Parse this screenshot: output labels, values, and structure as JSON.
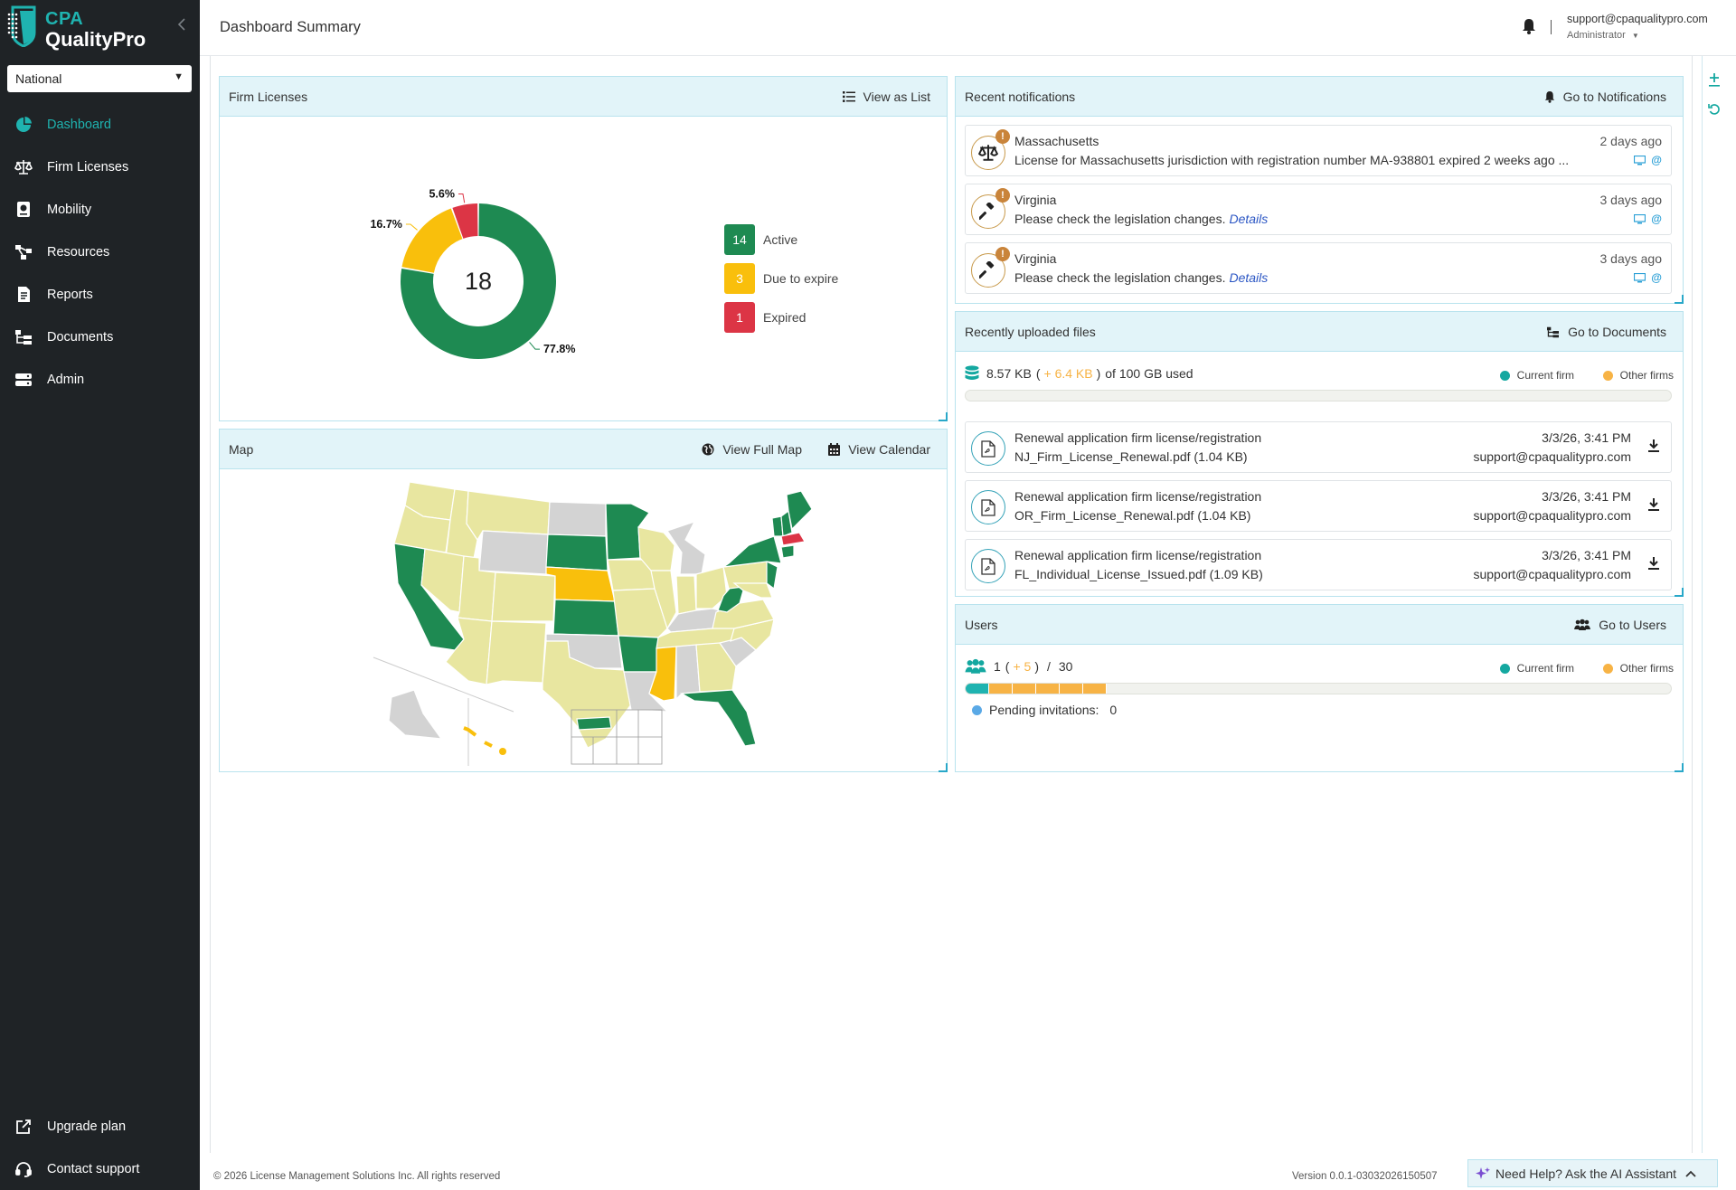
{
  "app": {
    "logo_line1": "CPA",
    "logo_line2": "QualityPro"
  },
  "sidebar": {
    "jurisdiction_select": "National",
    "items": [
      {
        "label": "Dashboard",
        "icon": "pie-chart-icon",
        "active": true
      },
      {
        "label": "Firm Licenses",
        "icon": "scales-icon"
      },
      {
        "label": "Mobility",
        "icon": "passport-icon"
      },
      {
        "label": "Resources",
        "icon": "nodes-icon"
      },
      {
        "label": "Reports",
        "icon": "report-icon"
      },
      {
        "label": "Documents",
        "icon": "folder-tree-icon"
      },
      {
        "label": "Admin",
        "icon": "server-icon"
      }
    ],
    "bottom_items": [
      {
        "label": "Upgrade plan",
        "icon": "external-link-icon"
      },
      {
        "label": "Contact support",
        "icon": "headset-icon"
      }
    ]
  },
  "header": {
    "title": "Dashboard Summary",
    "user_email": "support@cpaqualitypro.com",
    "user_role": "Administrator"
  },
  "firm_licenses": {
    "title": "Firm Licenses",
    "action": "View as List",
    "total": "18",
    "legend": [
      {
        "count": "14",
        "label": "Active",
        "color": "#1e8a52"
      },
      {
        "count": "3",
        "label": "Due to expire",
        "color": "#f9bf0c"
      },
      {
        "count": "1",
        "label": "Expired",
        "color": "#dc3545"
      }
    ]
  },
  "chart_data": {
    "type": "pie",
    "categories": [
      "Active",
      "Due to expire",
      "Expired"
    ],
    "values": [
      14,
      3,
      1
    ],
    "percent_labels": [
      "77.8%",
      "16.7%",
      "5.6%"
    ],
    "colors": [
      "#1e8a52",
      "#f9bf0c",
      "#dc3545"
    ],
    "center_label": "18"
  },
  "map": {
    "title": "Map",
    "action_full_map": "View Full Map",
    "action_calendar": "View Calendar"
  },
  "notifications": {
    "title": "Recent notifications",
    "action": "Go to Notifications",
    "items": [
      {
        "icon": "scales-icon",
        "title": "Massachusetts",
        "message": "License for Massachusetts jurisdiction with registration number MA-938801 expired 2 weeks ago ...",
        "link": "",
        "time": "2 days ago"
      },
      {
        "icon": "gavel-icon",
        "title": "Virginia",
        "message": "Please check the legislation changes.",
        "link": "Details",
        "time": "3 days ago"
      },
      {
        "icon": "gavel-icon",
        "title": "Virginia",
        "message": "Please check the legislation changes.",
        "link": "Details",
        "time": "3 days ago"
      }
    ]
  },
  "files": {
    "title": "Recently uploaded files",
    "action": "Go to Documents",
    "usage_current": "8.57 KB",
    "usage_other": "+ 6.4 KB",
    "usage_total": "of 100 GB used",
    "legend_current": "Current firm",
    "legend_other": "Other firms",
    "items": [
      {
        "type": "Renewal application firm license/registration",
        "name": "NJ_Firm_License_Renewal.pdf (1.04 KB)",
        "date": "3/3/26, 3:41 PM",
        "user": "support@cpaqualitypro.com"
      },
      {
        "type": "Renewal application firm license/registration",
        "name": "OR_Firm_License_Renewal.pdf (1.04 KB)",
        "date": "3/3/26, 3:41 PM",
        "user": "support@cpaqualitypro.com"
      },
      {
        "type": "Renewal application firm license/registration",
        "name": "FL_Individual_License_Issued.pdf (1.09 KB)",
        "date": "3/3/26, 3:41 PM",
        "user": "support@cpaqualitypro.com"
      }
    ]
  },
  "users": {
    "title": "Users",
    "action": "Go to Users",
    "current": "1",
    "other": "+ 5",
    "separator": "/",
    "total": "30",
    "legend_current": "Current firm",
    "legend_other": "Other firms",
    "pending_label": "Pending invitations:",
    "pending_count": "0"
  },
  "footer": {
    "copyright": "© 2026 License Management Solutions Inc. All rights reserved",
    "version": "Version 0.0.1-03032026150507",
    "help": "Need Help? Ask the AI Assistant"
  },
  "colors": {
    "accent": "#1fb3b0",
    "active": "#1e8a52",
    "due": "#f9bf0c",
    "expired": "#dc3545",
    "other": "#f7b345",
    "map_light": "#e8e6a0",
    "map_gray": "#d3d3d3"
  }
}
